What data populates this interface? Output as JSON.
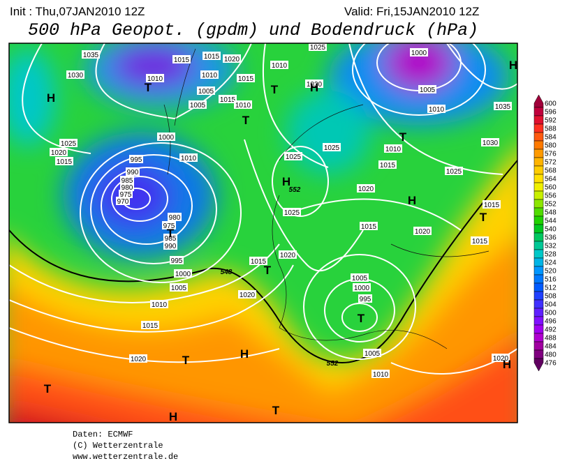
{
  "header": {
    "init": "Init : Thu,07JAN2010 12Z",
    "valid": "Valid: Fri,15JAN2010 12Z",
    "title": "500 hPa Geopot. (gpdm) und Bodendruck (hPa)"
  },
  "colorbar": {
    "ticks": [
      600,
      596,
      592,
      588,
      584,
      580,
      576,
      572,
      568,
      564,
      560,
      556,
      552,
      548,
      544,
      540,
      536,
      532,
      528,
      524,
      520,
      516,
      512,
      508,
      504,
      500,
      496,
      492,
      488,
      484,
      480,
      476
    ],
    "colors": [
      "#a0003a",
      "#c0003c",
      "#e0102f",
      "#ff3020",
      "#ff5a10",
      "#ff7a00",
      "#ff9a00",
      "#ffb400",
      "#ffcc00",
      "#ffe000",
      "#f0f000",
      "#c8f000",
      "#8ce600",
      "#50dc00",
      "#20d200",
      "#00c820",
      "#00c860",
      "#00c896",
      "#00c8c8",
      "#00b4e6",
      "#0096ff",
      "#0078ff",
      "#005aff",
      "#2040ff",
      "#4030ff",
      "#6020ff",
      "#8010ff",
      "#a000f0",
      "#b000d0",
      "#a000a0",
      "#800080",
      "#600060"
    ]
  },
  "isobar_labels": [
    "1035",
    "1030",
    "1015",
    "1015",
    "1020",
    "1010",
    "1010",
    "1015",
    "1010",
    "1025",
    "1030",
    "1005",
    "1005",
    "1015",
    "1010",
    "1000",
    "1005",
    "1010",
    "1035",
    "1025",
    "1020",
    "1015",
    "1000",
    "1010",
    "995",
    "990",
    "985",
    "980",
    "975",
    "970",
    "1025",
    "1025",
    "1010",
    "1015",
    "1030",
    "1025",
    "1020",
    "980",
    "975",
    "985",
    "990",
    "995",
    "1000",
    "1005",
    "1010",
    "1015",
    "1020",
    "1025",
    "1015",
    "1020",
    "1015",
    "1015",
    "1015",
    "1020",
    "1020",
    "1005",
    "1000",
    "995",
    "1005",
    "1010",
    "1020"
  ],
  "height_labels": [
    "552",
    "548",
    "552"
  ],
  "centers": [
    "H",
    "T",
    "H",
    "T",
    "T",
    "H",
    "T",
    "H",
    "H",
    "T",
    "T",
    "T",
    "T",
    "H",
    "T",
    "T",
    "H",
    "T",
    "H"
  ],
  "footer": [
    "Daten: ECMWF",
    "(C) Wetterzentrale",
    "www.wetterzentrale.de"
  ]
}
